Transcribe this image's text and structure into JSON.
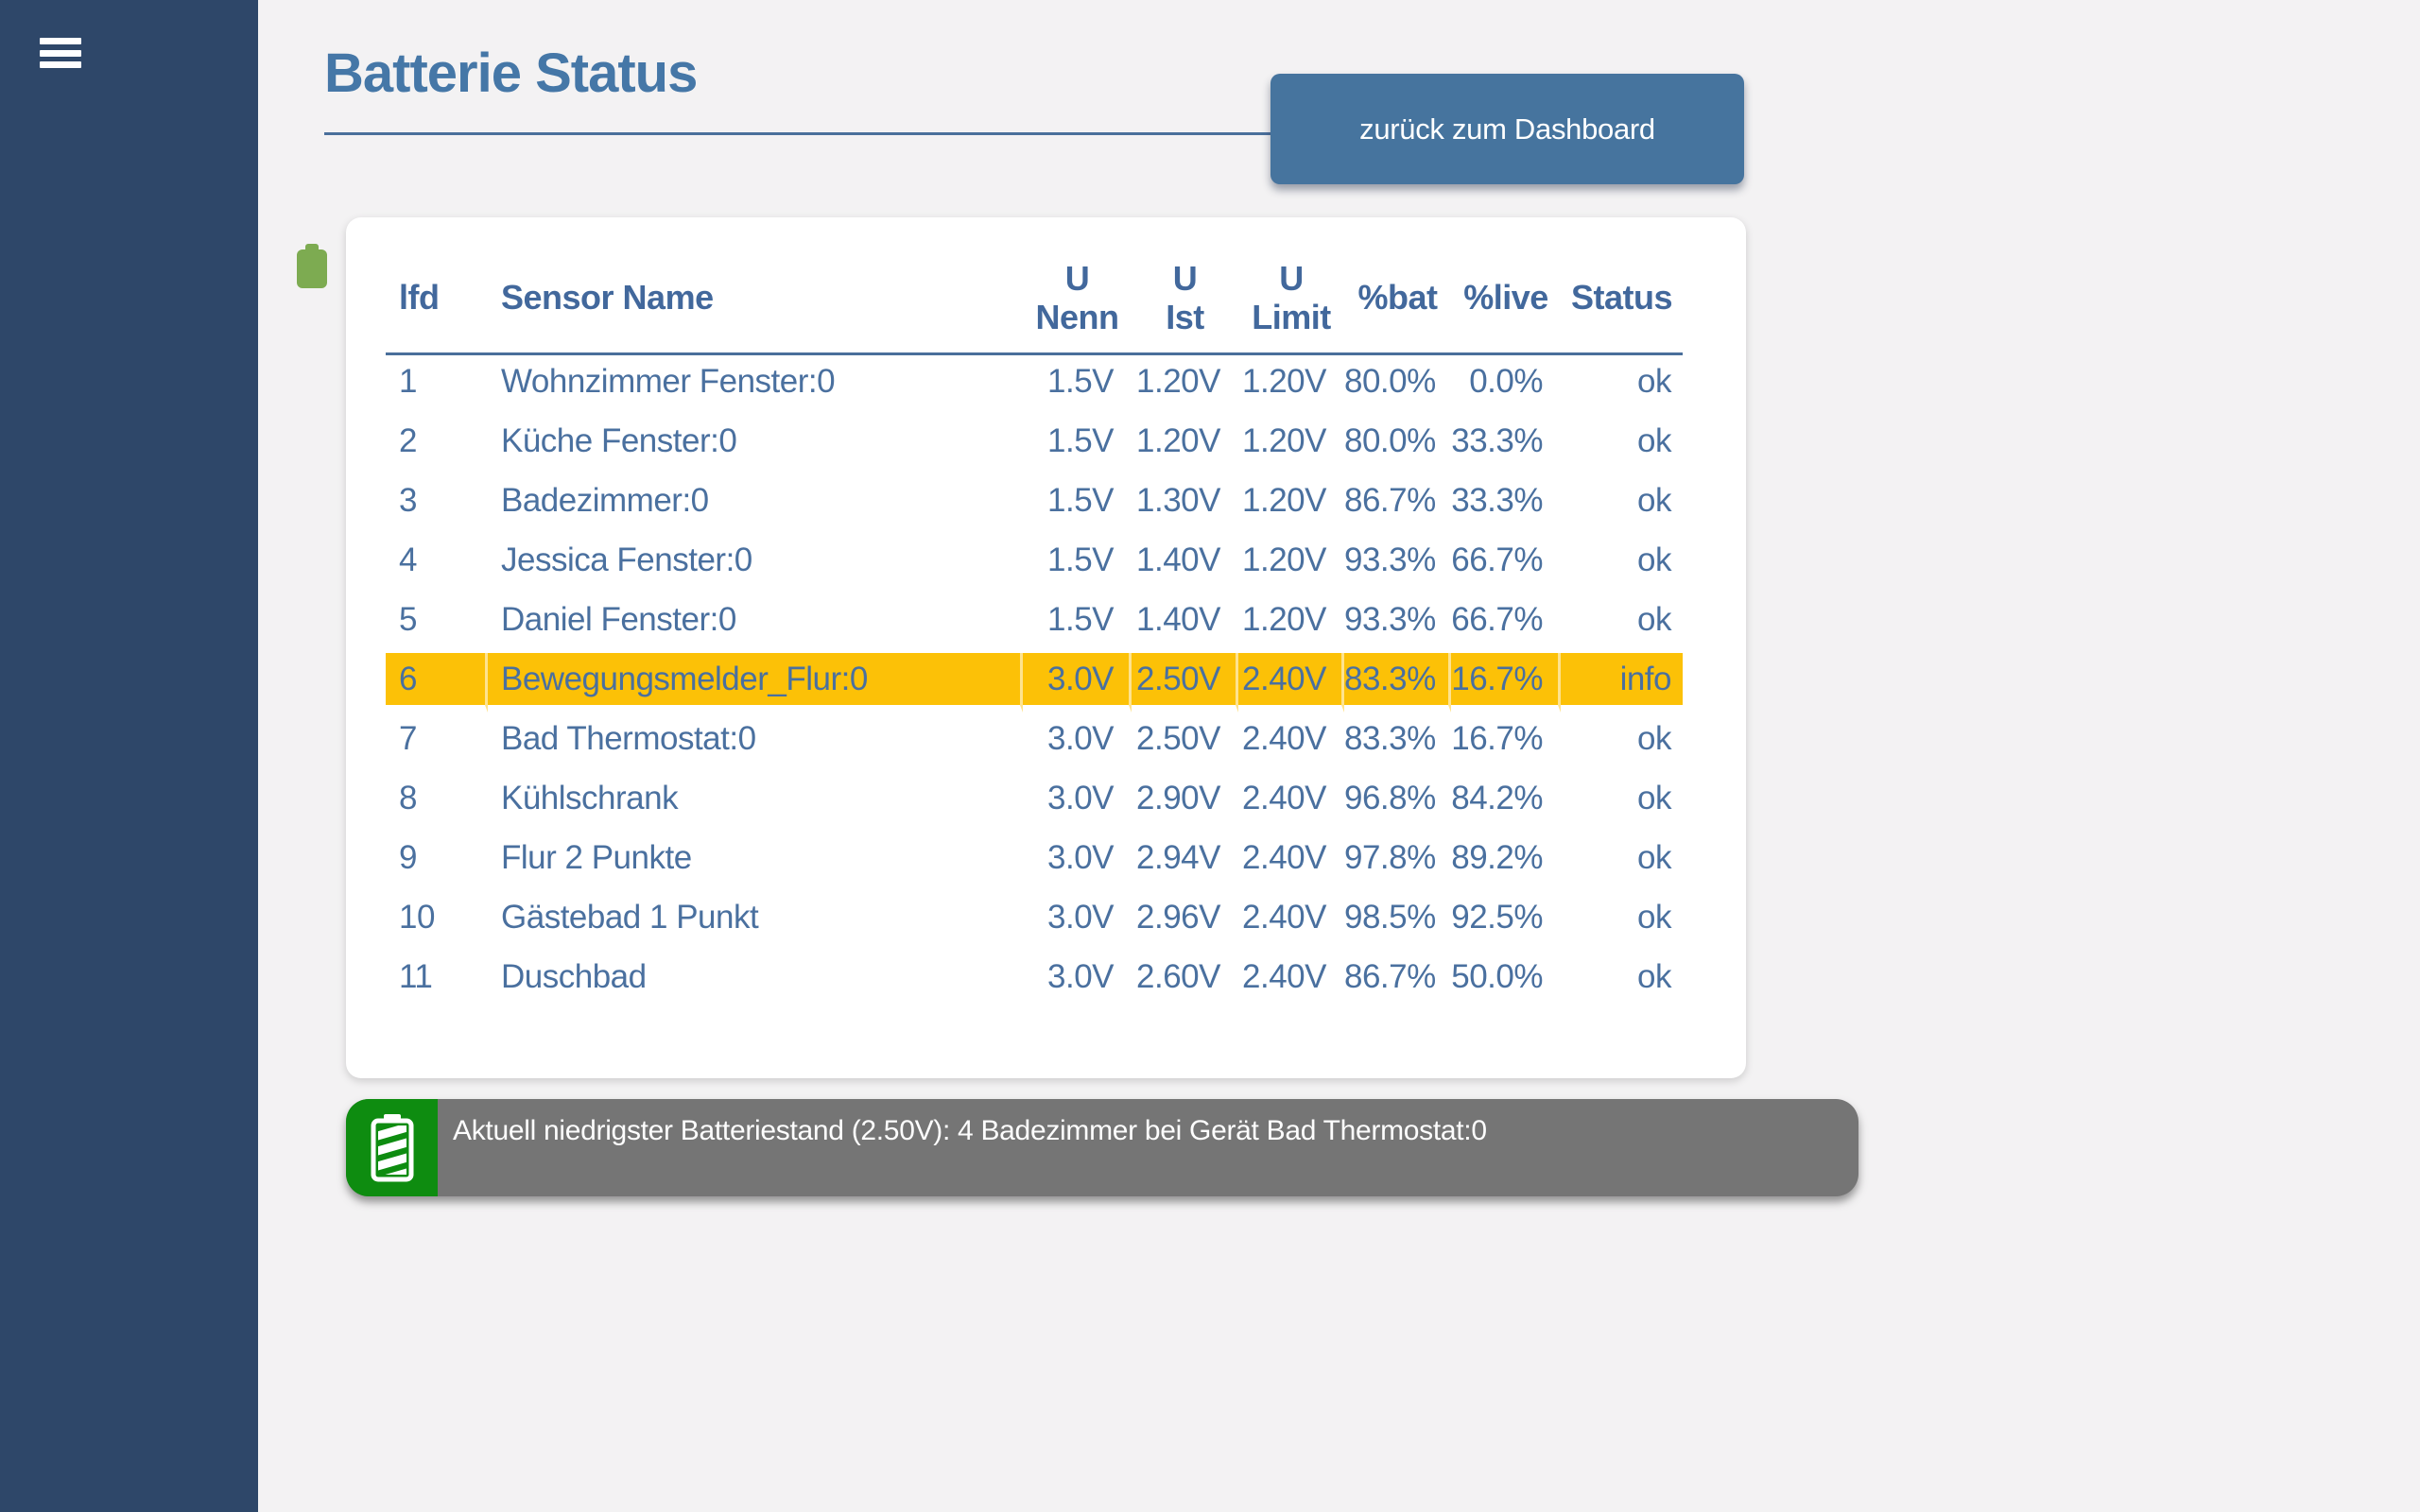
{
  "colors": {
    "background": "#f3f2f3",
    "sidebar": "#2e4769",
    "accent_blue": "#46749e",
    "title_blue": "#4577a7",
    "table_text": "#4a709f",
    "highlight_yellow": "#fcc107",
    "status_bar_gray": "#757575",
    "status_icon_green": "#0e8c10",
    "battery_decor_green": "#7dab51"
  },
  "sidebar": {
    "menu_icon": "hamburger-icon"
  },
  "header": {
    "title": "Batterie Status",
    "back_button_label": "zurück zum Dashboard"
  },
  "table": {
    "columns": [
      {
        "key": "lfd",
        "label": "lfd"
      },
      {
        "key": "sensor",
        "label": "Sensor Name"
      },
      {
        "key": "u_nenn",
        "label": "U\nNenn"
      },
      {
        "key": "u_ist",
        "label": "U\nIst"
      },
      {
        "key": "u_limit",
        "label": "U\nLimit"
      },
      {
        "key": "bat",
        "label": "%bat"
      },
      {
        "key": "live",
        "label": "%live"
      },
      {
        "key": "status",
        "label": "Status"
      }
    ],
    "highlighted_row_index": 5,
    "rows": [
      {
        "lfd": "1",
        "sensor": "Wohnzimmer Fenster:0",
        "u_nenn": "1.5V",
        "u_ist": "1.20V",
        "u_limit": "1.20V",
        "bat": "80.0%",
        "live": "0.0%",
        "status": "ok"
      },
      {
        "lfd": "2",
        "sensor": "Küche Fenster:0",
        "u_nenn": "1.5V",
        "u_ist": "1.20V",
        "u_limit": "1.20V",
        "bat": "80.0%",
        "live": "33.3%",
        "status": "ok"
      },
      {
        "lfd": "3",
        "sensor": "Badezimmer:0",
        "u_nenn": "1.5V",
        "u_ist": "1.30V",
        "u_limit": "1.20V",
        "bat": "86.7%",
        "live": "33.3%",
        "status": "ok"
      },
      {
        "lfd": "4",
        "sensor": "Jessica Fenster:0",
        "u_nenn": "1.5V",
        "u_ist": "1.40V",
        "u_limit": "1.20V",
        "bat": "93.3%",
        "live": "66.7%",
        "status": "ok"
      },
      {
        "lfd": "5",
        "sensor": "Daniel Fenster:0",
        "u_nenn": "1.5V",
        "u_ist": "1.40V",
        "u_limit": "1.20V",
        "bat": "93.3%",
        "live": "66.7%",
        "status": "ok"
      },
      {
        "lfd": "6",
        "sensor": "Bewegungsmelder_Flur:0",
        "u_nenn": "3.0V",
        "u_ist": "2.50V",
        "u_limit": "2.40V",
        "bat": "83.3%",
        "live": "16.7%",
        "status": "info"
      },
      {
        "lfd": "7",
        "sensor": "Bad Thermostat:0",
        "u_nenn": "3.0V",
        "u_ist": "2.50V",
        "u_limit": "2.40V",
        "bat": "83.3%",
        "live": "16.7%",
        "status": "ok"
      },
      {
        "lfd": "8",
        "sensor": "Kühlschrank",
        "u_nenn": "3.0V",
        "u_ist": "2.90V",
        "u_limit": "2.40V",
        "bat": "96.8%",
        "live": "84.2%",
        "status": "ok"
      },
      {
        "lfd": "9",
        "sensor": "Flur 2 Punkte",
        "u_nenn": "3.0V",
        "u_ist": "2.94V",
        "u_limit": "2.40V",
        "bat": "97.8%",
        "live": "89.2%",
        "status": "ok"
      },
      {
        "lfd": "10",
        "sensor": "Gästebad 1 Punkt",
        "u_nenn": "3.0V",
        "u_ist": "2.96V",
        "u_limit": "2.40V",
        "bat": "98.5%",
        "live": "92.5%",
        "status": "ok"
      },
      {
        "lfd": "11",
        "sensor": "Duschbad",
        "u_nenn": "3.0V",
        "u_ist": "2.60V",
        "u_limit": "2.40V",
        "bat": "86.7%",
        "live": "50.0%",
        "status": "ok"
      }
    ]
  },
  "status_bar": {
    "message": "Aktuell niedrigster Batteriestand (2.50V): 4 Badezimmer bei Gerät Bad Thermostat:0",
    "icon": "battery-icon"
  }
}
